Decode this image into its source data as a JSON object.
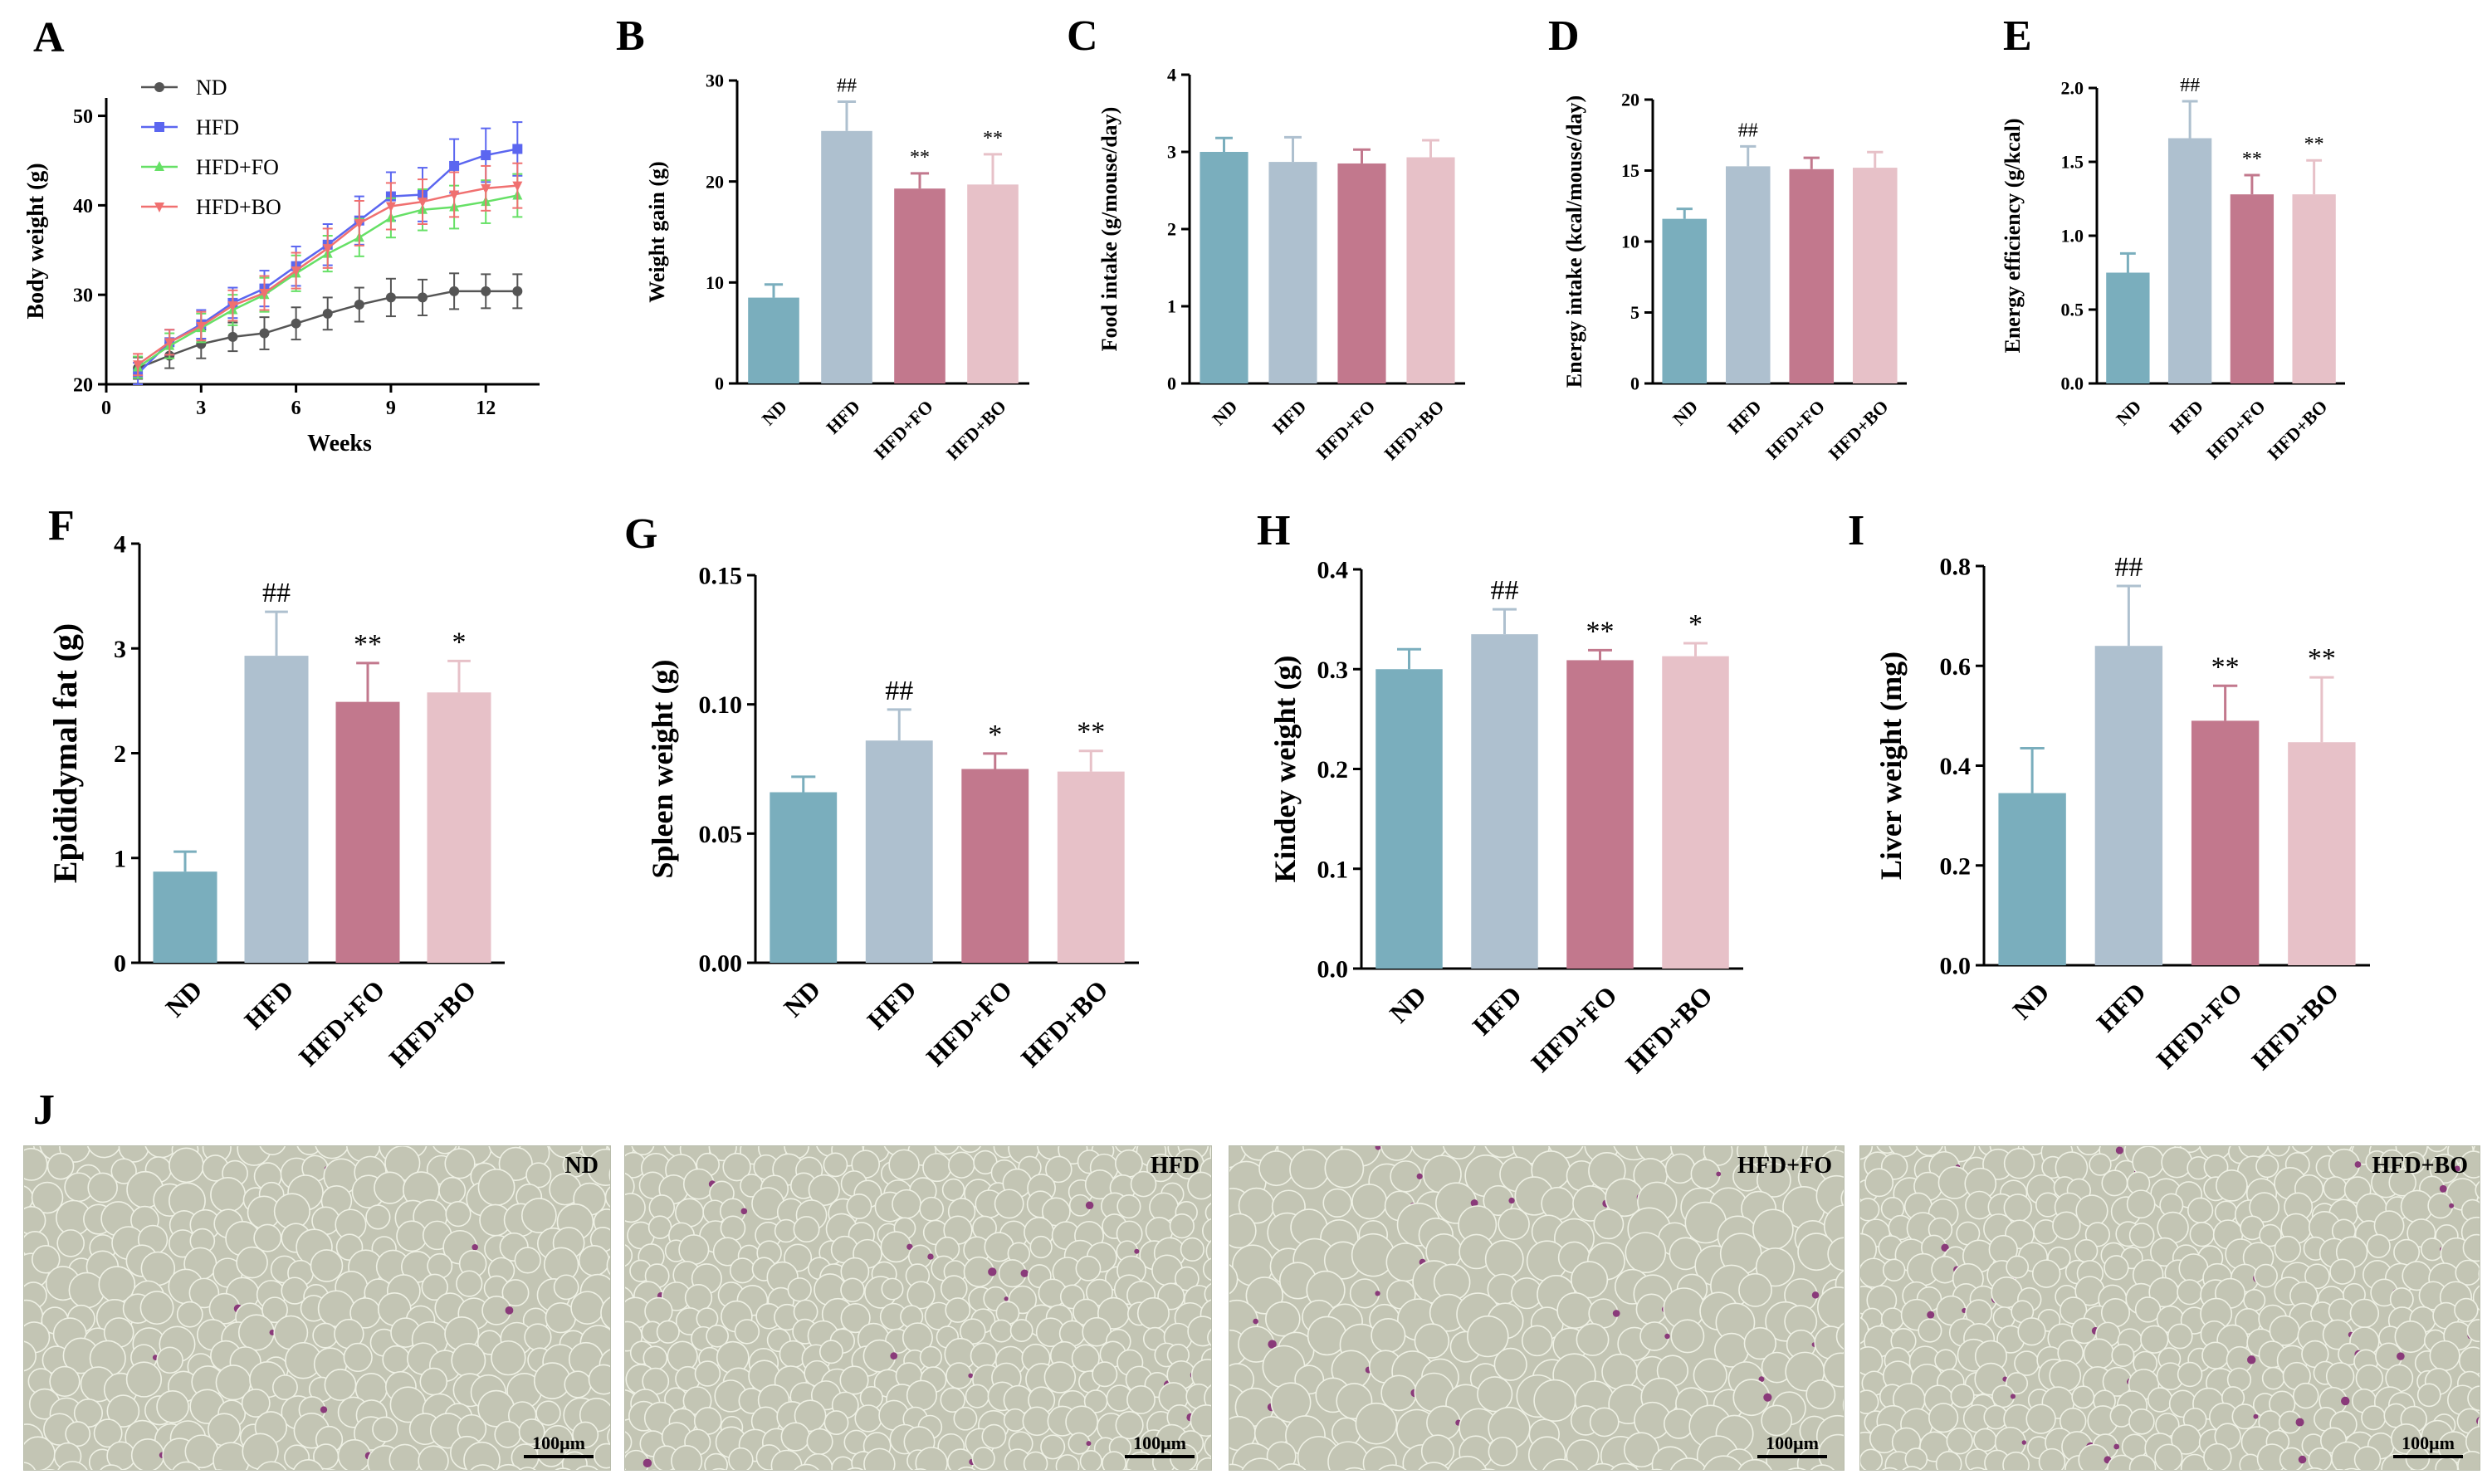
{
  "colors": {
    "ND": "#7aaebd",
    "HFD": "#aec0cf",
    "HFD+FO": "#c2788d",
    "HFD+BO": "#e7c1c8",
    "line_ND": "#555555",
    "line_HFD": "#5b66f0",
    "line_FO": "#66e066",
    "line_BO": "#f07070",
    "tissue_bg": "#c3c5b4",
    "tissue_membrane": "#eef0e4",
    "tissue_nuclei": "#8a3a7a"
  },
  "chart_data": [
    {
      "id": "A",
      "letter": "A",
      "type": "line",
      "xlabel": "Weeks",
      "ylabel": "Body weight (g)",
      "xlim": [
        0,
        13.7
      ],
      "ylim": [
        20,
        52
      ],
      "xticks": [
        0,
        3,
        6,
        9,
        12
      ],
      "yticks": [
        20,
        30,
        40,
        50
      ],
      "x": [
        1,
        2,
        3,
        4,
        5,
        6,
        7,
        8,
        9,
        10,
        11,
        12,
        13
      ],
      "series": [
        {
          "name": "ND",
          "marker": "circle",
          "color": "#555555",
          "values": [
            21.8,
            23.2,
            24.5,
            25.3,
            25.7,
            26.8,
            27.9,
            28.9,
            29.7,
            29.7,
            30.4,
            30.4,
            30.4
          ],
          "errors": [
            1.2,
            1.4,
            1.6,
            1.6,
            1.8,
            1.8,
            1.8,
            1.9,
            2.1,
            2.0,
            2.0,
            1.9,
            1.9
          ]
        },
        {
          "name": "HFD",
          "marker": "square",
          "color": "#5b66f0",
          "values": [
            21.2,
            24.7,
            26.7,
            29.1,
            30.7,
            33.2,
            35.6,
            38.3,
            41.0,
            41.2,
            44.4,
            45.6,
            46.3
          ],
          "errors": [
            1.2,
            1.4,
            1.6,
            1.7,
            2.0,
            2.2,
            2.3,
            2.7,
            2.7,
            3.0,
            3.0,
            3.0,
            3.0
          ]
        },
        {
          "name": "HFD+FO",
          "marker": "triangle-up",
          "color": "#66e066",
          "values": [
            21.9,
            24.3,
            26.3,
            28.3,
            30.0,
            32.4,
            34.6,
            36.4,
            38.6,
            39.5,
            39.8,
            40.4,
            41.1
          ],
          "errors": [
            1.2,
            1.4,
            1.6,
            1.7,
            1.9,
            2.0,
            2.0,
            2.1,
            2.2,
            2.3,
            2.4,
            2.4,
            2.4
          ]
        },
        {
          "name": "HFD+BO",
          "marker": "triangle-down",
          "color": "#f07070",
          "values": [
            22.2,
            24.7,
            26.5,
            28.8,
            30.2,
            32.7,
            35.2,
            38.0,
            39.9,
            40.4,
            41.2,
            41.9,
            42.2
          ],
          "errors": [
            1.2,
            1.4,
            1.6,
            1.7,
            1.9,
            2.0,
            2.2,
            2.5,
            2.6,
            2.5,
            2.5,
            2.5,
            2.5
          ]
        }
      ]
    },
    {
      "id": "B",
      "letter": "B",
      "type": "bar",
      "ylabel": "Weight gain (g)",
      "ylim": [
        0,
        30
      ],
      "yticks": [
        "0",
        "10",
        "20",
        "30"
      ],
      "categories": [
        "ND",
        "HFD",
        "HFD+FO",
        "HFD+BO"
      ],
      "values": [
        8.5,
        25.0,
        19.3,
        19.7
      ],
      "errors": [
        1.3,
        2.9,
        1.5,
        3.0
      ],
      "annotations": [
        "",
        "##",
        "**",
        "**"
      ]
    },
    {
      "id": "C",
      "letter": "C",
      "type": "bar",
      "ylabel": "Food intake (g/mouse/day)",
      "ylim": [
        0,
        4
      ],
      "yticks": [
        "0",
        "1",
        "2",
        "3",
        "4"
      ],
      "categories": [
        "ND",
        "HFD",
        "HFD+FO",
        "HFD+BO"
      ],
      "values": [
        3.0,
        2.87,
        2.85,
        2.93
      ],
      "errors": [
        0.18,
        0.32,
        0.18,
        0.22
      ],
      "annotations": [
        "",
        "",
        "",
        ""
      ]
    },
    {
      "id": "D",
      "letter": "D",
      "type": "bar",
      "ylabel": "Energy intake (kcal/mouse/day)",
      "ylim": [
        0,
        20
      ],
      "yticks": [
        "0",
        "5",
        "10",
        "15",
        "20"
      ],
      "categories": [
        "ND",
        "HFD",
        "HFD+FO",
        "HFD+BO"
      ],
      "values": [
        11.6,
        15.3,
        15.1,
        15.2
      ],
      "errors": [
        0.7,
        1.4,
        0.8,
        1.1
      ],
      "annotations": [
        "",
        "##",
        "",
        ""
      ]
    },
    {
      "id": "E",
      "letter": "E",
      "type": "bar",
      "ylabel": "Energy efficiency (g/kcal)",
      "ylim": [
        0,
        2.0
      ],
      "yticks": [
        "0.0",
        "0.5",
        "1.0",
        "1.5",
        "2.0"
      ],
      "categories": [
        "ND",
        "HFD",
        "HFD+FO",
        "HFD+BO"
      ],
      "values": [
        0.75,
        1.66,
        1.28,
        1.28
      ],
      "errors": [
        0.13,
        0.25,
        0.13,
        0.23
      ],
      "annotations": [
        "",
        "##",
        "**",
        "**"
      ]
    },
    {
      "id": "F",
      "letter": "F",
      "type": "bar",
      "ylabel": "Epididymal fat (g)",
      "ylim": [
        0,
        4
      ],
      "yticks": [
        "0",
        "1",
        "2",
        "3",
        "4"
      ],
      "categories": [
        "ND",
        "HFD",
        "HFD+FO",
        "HFD+BO"
      ],
      "values": [
        0.87,
        2.93,
        2.49,
        2.58
      ],
      "errors": [
        0.19,
        0.42,
        0.37,
        0.3
      ],
      "annotations": [
        "",
        "##",
        "**",
        "*"
      ]
    },
    {
      "id": "G",
      "letter": "G",
      "type": "bar",
      "ylabel": "Spleen weight (g)",
      "ylim": [
        0,
        0.15
      ],
      "yticks": [
        "0.00",
        "0.05",
        "0.10",
        "0.15"
      ],
      "categories": [
        "ND",
        "HFD",
        "HFD+FO",
        "HFD+BO"
      ],
      "values": [
        0.066,
        0.086,
        0.075,
        0.074
      ],
      "errors": [
        0.006,
        0.012,
        0.006,
        0.008
      ],
      "annotations": [
        "",
        "##",
        "*",
        "**"
      ]
    },
    {
      "id": "H",
      "letter": "H",
      "type": "bar",
      "ylabel": "Kindey weight (g)",
      "ylim": [
        0,
        0.4
      ],
      "yticks": [
        "0.0",
        "0.1",
        "0.2",
        "0.3",
        "0.4"
      ],
      "categories": [
        "ND",
        "HFD",
        "HFD+FO",
        "HFD+BO"
      ],
      "values": [
        0.3,
        0.335,
        0.309,
        0.313
      ],
      "errors": [
        0.02,
        0.025,
        0.01,
        0.013
      ],
      "annotations": [
        "",
        "##",
        "**",
        "*"
      ]
    },
    {
      "id": "I",
      "letter": "I",
      "type": "bar",
      "ylabel": "Liver weight (mg)",
      "ylim": [
        0,
        0.8
      ],
      "yticks": [
        "0.0",
        "0.2",
        "0.4",
        "0.6",
        "0.8"
      ],
      "categories": [
        "ND",
        "HFD",
        "HFD+FO",
        "HFD+BO"
      ],
      "values": [
        0.345,
        0.64,
        0.49,
        0.447
      ],
      "errors": [
        0.09,
        0.12,
        0.07,
        0.13
      ],
      "annotations": [
        "",
        "##",
        "**",
        "**"
      ]
    }
  ],
  "micrographs": {
    "letter": "J",
    "panels": [
      {
        "label": "ND",
        "scale": "100μm"
      },
      {
        "label": "HFD",
        "scale": "100μm"
      },
      {
        "label": "HFD+FO",
        "scale": "100μm"
      },
      {
        "label": "HFD+BO",
        "scale": "100μm"
      }
    ]
  }
}
